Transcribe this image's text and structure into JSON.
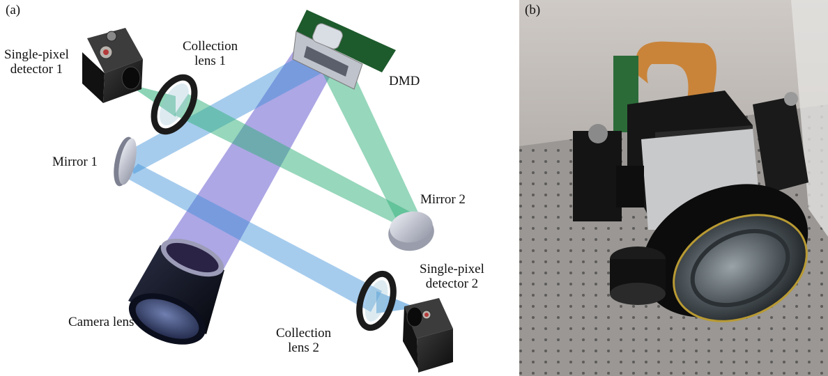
{
  "figure": {
    "panel_a": {
      "tag": "(a)",
      "labels": {
        "single_pixel_detector_1": [
          "Single-pixel",
          "detector 1"
        ],
        "collection_lens_1": [
          "Collection",
          "lens 1"
        ],
        "dmd": "DMD",
        "mirror_1": "Mirror 1",
        "mirror_2": "Mirror 2",
        "camera_lens": "Camera lens",
        "single_pixel_detector_2": [
          "Single-pixel",
          "detector 2"
        ],
        "collection_lens_2": [
          "Collection",
          "lens 2"
        ]
      }
    },
    "panel_b": {
      "tag": "(b)"
    }
  }
}
